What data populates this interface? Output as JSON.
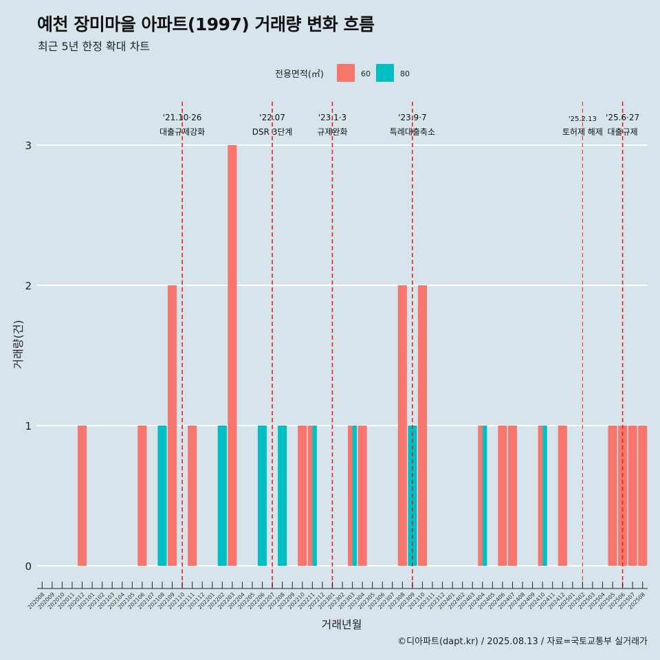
{
  "title": "예천 장미마을 아파트(1997) 거래량 변화 흐름",
  "subtitle": "최근 5년 한정 확대 차트",
  "caption": "©디아파트(dapt.kr) / 2025.08.13 / 자료=국토교통부 실거래가",
  "colors": {
    "background": "#d7e4eb",
    "s60": "#f8766d",
    "s80": "#00bfc4",
    "vline": "#e8211b",
    "grid": "#ffffff"
  },
  "chart_data": {
    "type": "bar",
    "xlabel": "거래년월",
    "ylabel": "거래량(건)",
    "ylim": [
      0,
      3
    ],
    "yticks": [
      0,
      1,
      2,
      3
    ],
    "legend": {
      "title": "전용면적(㎡)",
      "placement": "top",
      "entries": [
        "60",
        "80"
      ]
    },
    "categories": [
      "202008",
      "202009",
      "202010",
      "202011",
      "202012",
      "202101",
      "202102",
      "202103",
      "202104",
      "202105",
      "202106",
      "202107",
      "202108",
      "202109",
      "202110",
      "202111",
      "202112",
      "202201",
      "202202",
      "202203",
      "202204",
      "202205",
      "202206",
      "202207",
      "202208",
      "202209",
      "202210",
      "202211",
      "202212",
      "202301",
      "202302",
      "202303",
      "202304",
      "202305",
      "202306",
      "202307",
      "202308",
      "202309",
      "202310",
      "202311",
      "202312",
      "202401",
      "202402",
      "202403",
      "202404",
      "202405",
      "202406",
      "202407",
      "202408",
      "202409",
      "202410",
      "202411",
      "202412",
      "202501",
      "202502",
      "202503",
      "202504",
      "202505",
      "202506",
      "202507",
      "202508"
    ],
    "series": [
      {
        "name": "60",
        "values": [
          0,
          0,
          0,
          0,
          1,
          0,
          0,
          0,
          0,
          0,
          1,
          0,
          0,
          2,
          0,
          1,
          0,
          0,
          0,
          3,
          0,
          0,
          0,
          0,
          0,
          0,
          1,
          1,
          0,
          0,
          0,
          1,
          1,
          0,
          0,
          0,
          2,
          0,
          2,
          0,
          0,
          0,
          0,
          0,
          1,
          0,
          1,
          1,
          0,
          0,
          1,
          0,
          1,
          0,
          0,
          0,
          0,
          1,
          1,
          1,
          1
        ]
      },
      {
        "name": "80",
        "values": [
          0,
          0,
          0,
          0,
          0,
          0,
          0,
          0,
          0,
          0,
          0,
          0,
          1,
          0,
          0,
          0,
          0,
          0,
          1,
          0,
          0,
          0,
          1,
          0,
          1,
          0,
          0,
          1,
          0,
          0,
          0,
          1,
          0,
          0,
          0,
          0,
          0,
          1,
          0,
          0,
          0,
          0,
          0,
          0,
          1,
          0,
          0,
          0,
          0,
          0,
          1,
          0,
          0,
          0,
          0,
          0,
          0,
          0,
          0,
          0,
          0
        ]
      }
    ],
    "annotations": [
      {
        "x": "202110",
        "line1": "'21.10·26",
        "line2": "대출규제강화",
        "size": "normal"
      },
      {
        "x": "202207",
        "line1": "'22.07",
        "line2": "DSR 3단계",
        "size": "normal"
      },
      {
        "x": "202301",
        "line1": "'23.1·3",
        "line2": "규제완화",
        "size": "normal"
      },
      {
        "x": "202309",
        "line1": "'23.9·7",
        "line2": "특례대출축소",
        "size": "normal"
      },
      {
        "x": "202502",
        "line1": "'25.2.13",
        "line2": "토허제 해제",
        "size": "small"
      },
      {
        "x": "202506",
        "line1": "'25.6·27",
        "line2": "대출규제",
        "size": "normal"
      }
    ]
  }
}
